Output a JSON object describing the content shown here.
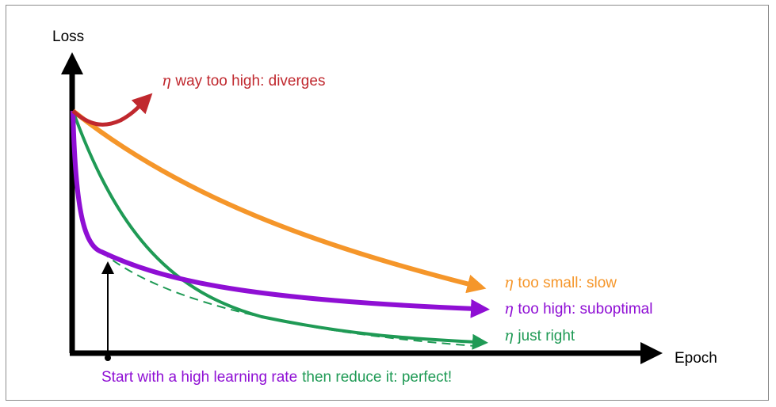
{
  "axes": {
    "y_label": "Loss",
    "x_label": "Epoch"
  },
  "curves": [
    {
      "id": "diverges",
      "symbol": "η",
      "label": "way too high: diverges",
      "color": "#c0282e"
    },
    {
      "id": "slow",
      "symbol": "η",
      "label": "too small: slow",
      "color": "#f5962a"
    },
    {
      "id": "suboptimal",
      "symbol": "η",
      "label": "too high: suboptimal",
      "color": "#8f0fd4"
    },
    {
      "id": "right",
      "symbol": "η",
      "label": "just right",
      "color": "#1f9a55"
    }
  ],
  "annotation": {
    "part1": "Start with a high learning rate",
    "part2": "then reduce it: perfect!",
    "color1": "#8f0fd4",
    "color2": "#1f9a55"
  }
}
